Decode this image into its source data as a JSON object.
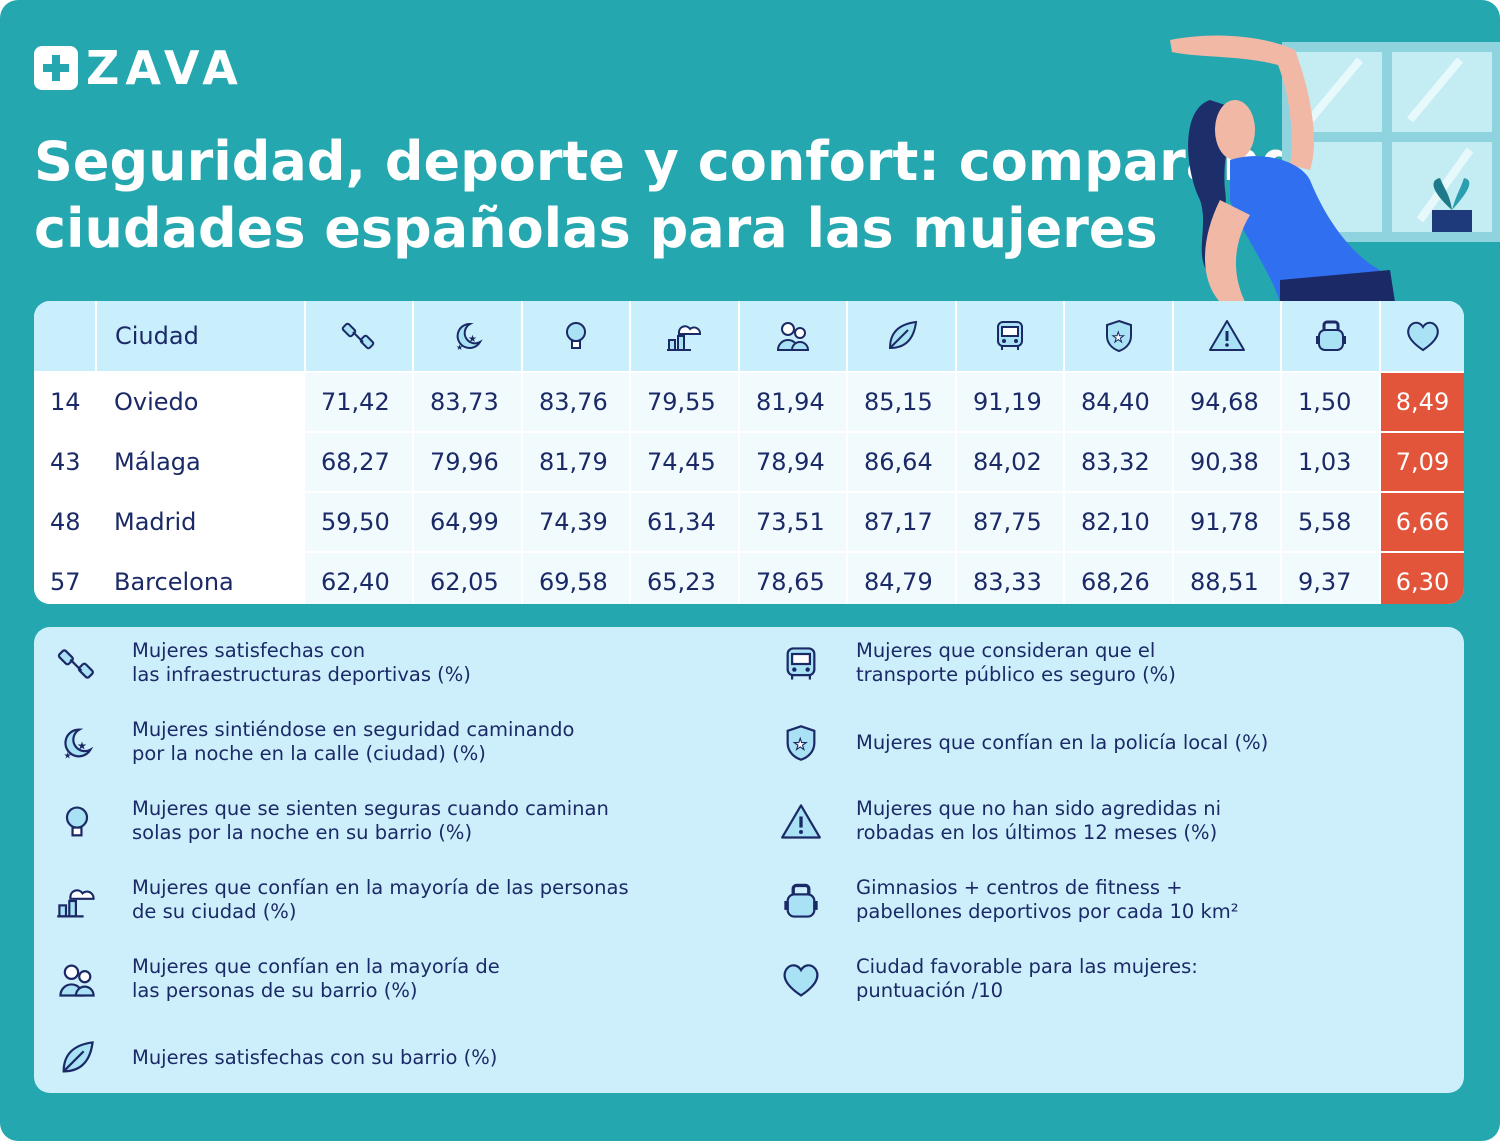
{
  "brand": {
    "name": "ZAVA"
  },
  "title": {
    "line1": "Seguridad, deporte y confort: comparando",
    "line2": "ciudades españolas para las mujeres"
  },
  "colors": {
    "background": "#25a7b0",
    "header_row": "#c9eefc",
    "score": "#e2553a",
    "text": "#1b2a66"
  },
  "table": {
    "city_header": "Ciudad",
    "column_icons": [
      "dumbbell-icon",
      "moon-stars-icon",
      "lightbulb-icon",
      "city-cloud-icon",
      "neighbors-icon",
      "leaf-icon",
      "bus-icon",
      "police-badge-icon",
      "warning-icon",
      "kettlebell-icon",
      "heart-icon"
    ],
    "rows": [
      {
        "rank": "14",
        "city": "Oviedo",
        "values": [
          "71,42",
          "83,73",
          "83,76",
          "79,55",
          "81,94",
          "85,15",
          "91,19",
          "84,40",
          "94,68",
          "1,50"
        ],
        "score": "8,49"
      },
      {
        "rank": "43",
        "city": "Málaga",
        "values": [
          "68,27",
          "79,96",
          "81,79",
          "74,45",
          "78,94",
          "86,64",
          "84,02",
          "83,32",
          "90,38",
          "1,03"
        ],
        "score": "7,09"
      },
      {
        "rank": "48",
        "city": "Madrid",
        "values": [
          "59,50",
          "64,99",
          "74,39",
          "61,34",
          "73,51",
          "87,17",
          "87,75",
          "82,10",
          "91,78",
          "5,58"
        ],
        "score": "6,66"
      },
      {
        "rank": "57",
        "city": "Barcelona",
        "values": [
          "62,40",
          "62,05",
          "69,58",
          "65,23",
          "78,65",
          "84,79",
          "83,33",
          "68,26",
          "88,51",
          "9,37"
        ],
        "score": "6,30"
      }
    ]
  },
  "legend": {
    "left": [
      {
        "icon": "dumbbell-icon",
        "text": "Mujeres satisfechas con\nlas infraestructuras deportivas (%)"
      },
      {
        "icon": "moon-stars-icon",
        "text": "Mujeres sintiéndose en seguridad caminando\npor la noche en la calle (ciudad) (%)"
      },
      {
        "icon": "lightbulb-icon",
        "text": "Mujeres que se sienten seguras cuando caminan\nsolas por la noche en su barrio (%)"
      },
      {
        "icon": "city-cloud-icon",
        "text": "Mujeres que confían en la mayoría de las personas\nde su ciudad (%)"
      },
      {
        "icon": "neighbors-icon",
        "text": "Mujeres que confían en la mayoría de\nlas personas de su barrio (%)"
      },
      {
        "icon": "leaf-icon",
        "text": "Mujeres satisfechas con su barrio (%)"
      }
    ],
    "right": [
      {
        "icon": "bus-icon",
        "text": "Mujeres que consideran que el\ntransporte público es seguro (%)"
      },
      {
        "icon": "police-badge-icon",
        "text": "Mujeres que confían en la policía local (%)"
      },
      {
        "icon": "warning-icon",
        "text": "Mujeres que no han sido agredidas ni\nrobadas en los últimos 12 meses (%)"
      },
      {
        "icon": "kettlebell-icon",
        "text": "Gimnasios + centros de fitness +\npabellones deportivos por cada 10 km²"
      },
      {
        "icon": "heart-icon",
        "text": "Ciudad favorable para las mujeres:\npuntuación /10"
      }
    ]
  }
}
